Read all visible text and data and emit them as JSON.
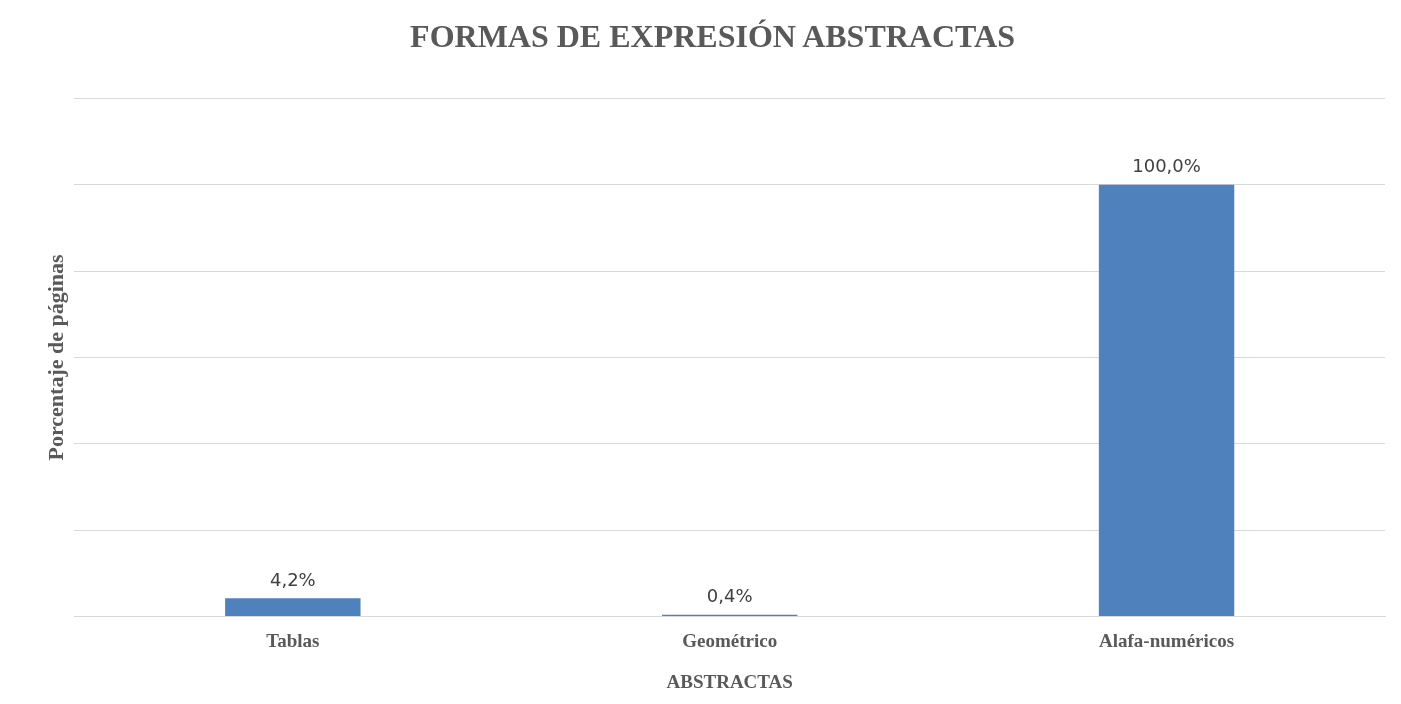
{
  "chart_data": {
    "type": "bar",
    "title": "FORMAS DE EXPRESIÓN ABSTRACTAS",
    "xlabel": "ABSTRACTAS",
    "ylabel": "Porcentaje de páginas",
    "categories": [
      "Tablas",
      "Geométrico",
      "Alafa-numéricos"
    ],
    "values": [
      4.2,
      0.4,
      100.0
    ],
    "value_labels": [
      "4,2%",
      "0,4%",
      "100,0%"
    ],
    "color": "#4f81bd",
    "ylim": [
      0,
      120
    ],
    "yticks": [
      {
        "value": 0,
        "label": null
      },
      {
        "value": 20,
        "label": null
      },
      {
        "value": 40,
        "label": null
      },
      {
        "value": 60,
        "label": null
      },
      {
        "value": 80,
        "label": null
      },
      {
        "value": 100,
        "label": null
      },
      {
        "value": 120,
        "label": null
      }
    ],
    "tick_labels": "x",
    "grid": "y",
    "legend": false
  }
}
